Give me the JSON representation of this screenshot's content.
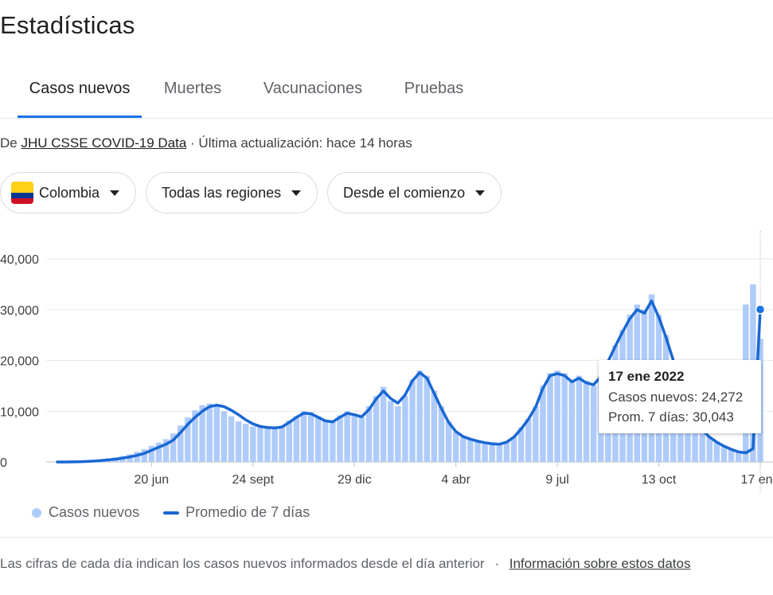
{
  "page": {
    "title": "Estadísticas"
  },
  "tabs": [
    {
      "label": "Casos nuevos",
      "active": true
    },
    {
      "label": "Muertes",
      "active": false
    },
    {
      "label": "Vacunaciones",
      "active": false
    },
    {
      "label": "Pruebas",
      "active": false
    }
  ],
  "source": {
    "prefix": "De",
    "link": "JHU CSSE COVID-19 Data",
    "suffix": "· Última actualización: hace 14 horas"
  },
  "filters": {
    "country": "Colombia",
    "region": "Todas las regiones",
    "range": "Desde el comienzo",
    "flag_colors": [
      "#fcd116",
      "#003893",
      "#ce1126"
    ]
  },
  "colors": {
    "bar": "#aecbfa",
    "line": "#1967d2",
    "accent": "#1a73e8"
  },
  "chart_data": {
    "type": "bar",
    "y_ticks": [
      {
        "value": 0,
        "label": "0"
      },
      {
        "value": 10000,
        "label": "10,000"
      },
      {
        "value": 20000,
        "label": "20,000"
      },
      {
        "value": 30000,
        "label": "30,000"
      },
      {
        "value": 40000,
        "label": "40,000"
      }
    ],
    "ylim": [
      0,
      40000
    ],
    "x_ticks": [
      {
        "week": 13,
        "label": "20 jun"
      },
      {
        "week": 27,
        "label": "24 sept"
      },
      {
        "week": 41,
        "label": "29 dic"
      },
      {
        "week": 55,
        "label": "4 abr"
      },
      {
        "week": 69,
        "label": "9 jul"
      },
      {
        "week": 83,
        "label": "13 oct"
      },
      {
        "week": 97,
        "label": "17 ene"
      }
    ],
    "grid": true,
    "series": [
      {
        "name": "Casos nuevos",
        "type": "bar",
        "values": [
          50,
          100,
          150,
          200,
          300,
          400,
          500,
          700,
          900,
          1200,
          1500,
          2000,
          2500,
          3200,
          3800,
          4500,
          5600,
          7200,
          8800,
          10200,
          11200,
          11500,
          11000,
          10000,
          9000,
          8000,
          7500,
          7000,
          7000,
          6800,
          6600,
          7000,
          8200,
          9000,
          10000,
          9800,
          9000,
          8200,
          8000,
          9200,
          10000,
          9500,
          8800,
          11000,
          13000,
          14800,
          12000,
          11000,
          13000,
          16200,
          18000,
          17000,
          14000,
          11000,
          8000,
          6000,
          5000,
          4500,
          4200,
          4000,
          3800,
          3500,
          4000,
          5000,
          6800,
          8500,
          11000,
          15000,
          17500,
          18000,
          17500,
          16000,
          17000,
          16000,
          15000,
          17000,
          20000,
          23000,
          26000,
          29000,
          31000,
          30000,
          33000,
          29000,
          25000,
          20000,
          16000,
          12000,
          8500,
          6500,
          5000,
          4000,
          3200,
          2500,
          2000,
          31000,
          35000,
          24272
        ],
        "comment": ""
      },
      {
        "name": "Promedio de 7 días",
        "type": "line",
        "values": [
          0,
          0,
          20,
          50,
          100,
          180,
          280,
          400,
          550,
          750,
          1000,
          1300,
          1700,
          2300,
          2900,
          3500,
          4300,
          5800,
          7400,
          8800,
          10000,
          10900,
          11200,
          10900,
          10200,
          9300,
          8300,
          7500,
          7000,
          6800,
          6700,
          6900,
          7800,
          8800,
          9600,
          9500,
          8800,
          8100,
          7900,
          8800,
          9600,
          9300,
          8900,
          10300,
          12400,
          14000,
          12500,
          11600,
          13200,
          16000,
          17600,
          16500,
          13500,
          10500,
          7800,
          6000,
          5000,
          4500,
          4100,
          3800,
          3600,
          3500,
          3900,
          4900,
          6500,
          8400,
          10800,
          14500,
          17000,
          17400,
          17000,
          15800,
          16500,
          15600,
          15200,
          16800,
          19800,
          22800,
          25600,
          28200,
          30000,
          29300,
          31700,
          28500,
          24500,
          20000,
          15600,
          11800,
          8300,
          6300,
          4900,
          3900,
          3100,
          2500,
          2000,
          1800,
          2600,
          30043
        ]
      }
    ]
  },
  "tooltip": {
    "date": "17 ene 2022",
    "cases": "Casos nuevos: 24,272",
    "avg": "Prom. 7 días: 30,043"
  },
  "legend": {
    "bars": "Casos nuevos",
    "line": "Promedio de 7 días"
  },
  "footer": {
    "note": "Las cifras de cada día indican los casos nuevos informados desde el día anterior",
    "separator": "·",
    "link": "Información sobre estos datos"
  }
}
